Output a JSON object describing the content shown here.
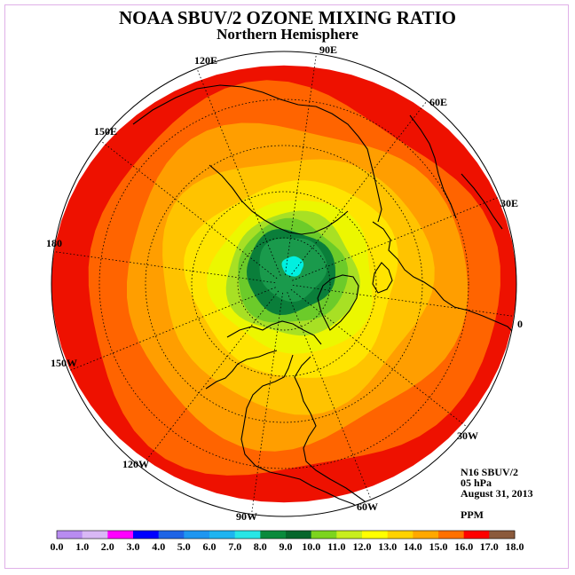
{
  "title": "NOAA SBUV/2 OZONE MIXING RATIO",
  "subtitle": "Northern Hemisphere",
  "longitude_labels": [
    "90E",
    "60E",
    "30E",
    "0",
    "30W",
    "60W",
    "90W",
    "120W",
    "150W",
    "180",
    "150E",
    "120E"
  ],
  "info": {
    "satellite": "N16 SBUV/2",
    "level": "05 hPa",
    "date": "August 31, 2013",
    "units": "PPM"
  },
  "colorbar": {
    "ticks": [
      "0.0",
      "1.0",
      "2.0",
      "3.0",
      "4.0",
      "5.0",
      "6.0",
      "7.0",
      "8.0",
      "9.0",
      "10.0",
      "11.0",
      "12.0",
      "13.0",
      "14.0",
      "15.0",
      "16.0",
      "17.0",
      "18.0"
    ],
    "colors": [
      "#b88cf0",
      "#d9b8f5",
      "#ff00ff",
      "#0000ff",
      "#1e64e6",
      "#1e96f0",
      "#1eb4f0",
      "#28e6e6",
      "#0a8a3c",
      "#06662c",
      "#7cd41e",
      "#c8ee1e",
      "#ffff00",
      "#ffd200",
      "#ffa800",
      "#ff7000",
      "#ff0000",
      "#8b5a3c"
    ]
  },
  "map_levels": [
    {
      "value_ppm": 17.0,
      "color": "#ee1100"
    },
    {
      "value_ppm": 16.0,
      "color": "#ff6400"
    },
    {
      "value_ppm": 15.0,
      "color": "#ff9e00"
    },
    {
      "value_ppm": 14.0,
      "color": "#ffc300"
    },
    {
      "value_ppm": 13.0,
      "color": "#ffe400"
    },
    {
      "value_ppm": 12.0,
      "color": "#ecf700"
    },
    {
      "value_ppm": 11.0,
      "color": "#a8e024"
    },
    {
      "value_ppm": 10.0,
      "color": "#6ccb2a"
    },
    {
      "value_ppm": 9.0,
      "color": "#0a7e3a"
    },
    {
      "value_ppm": 8.0,
      "color": "#1a9a4c"
    },
    {
      "value_ppm": 7.0,
      "color": "#00f0e0"
    }
  ]
}
